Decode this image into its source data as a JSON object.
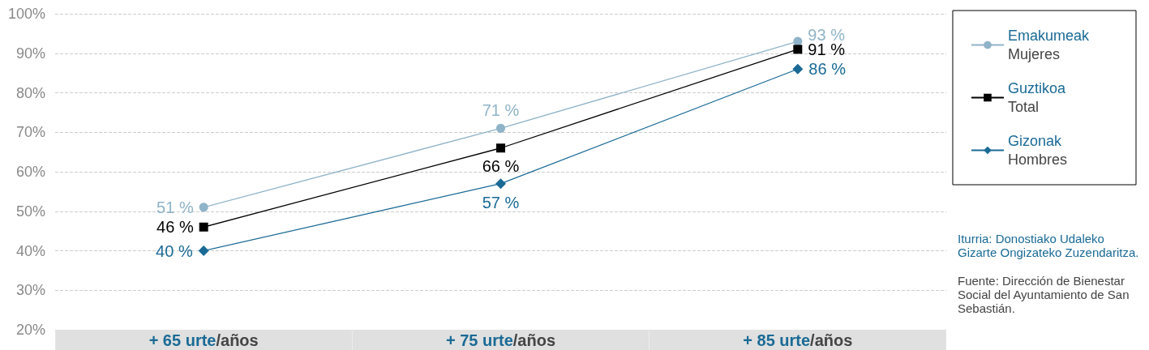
{
  "chart_data": {
    "type": "line",
    "categories": [
      "+ 65 urte/años",
      "+ 75 urte/años",
      "+ 85 urte/años"
    ],
    "series": [
      {
        "name": "Emakumeak\nMujeres",
        "color": "#8fb3c8",
        "marker": "circle",
        "values": [
          51,
          71,
          93
        ],
        "value_labels": [
          "51 %",
          "71 %",
          "93 %"
        ]
      },
      {
        "name": "Guztikoa\nTotal",
        "color": "#000000",
        "marker": "square",
        "values": [
          46,
          66,
          91
        ],
        "value_labels": [
          "46 %",
          "66 %",
          "91 %"
        ]
      },
      {
        "name": "Gizonak\nHombres",
        "color": "#1a6a96",
        "marker": "diamond",
        "values": [
          40,
          57,
          86
        ],
        "value_labels": [
          "40 %",
          "57 %",
          "86 %"
        ]
      }
    ],
    "ylim": [
      20,
      100
    ],
    "yticks": [
      {
        "value": 20,
        "label": "20%"
      },
      {
        "value": 30,
        "label": "30%"
      },
      {
        "value": 40,
        "label": "40%"
      },
      {
        "value": 50,
        "label": "50%"
      },
      {
        "value": 60,
        "label": "60%"
      },
      {
        "value": 70,
        "label": "70%"
      },
      {
        "value": 80,
        "label": "80%"
      },
      {
        "value": 90,
        "label": "90%"
      },
      {
        "value": 100,
        "label": "100%"
      }
    ],
    "grid": "y",
    "legend": "right",
    "line_style": "solid",
    "annotations": [
      "Iturria: Donostiako Udaleko Gizarte Ongizateko Zuzendaritza.",
      "Fuente: Dirección de Bienestar Social del Ayuntamiento de San Sebastián."
    ]
  }
}
